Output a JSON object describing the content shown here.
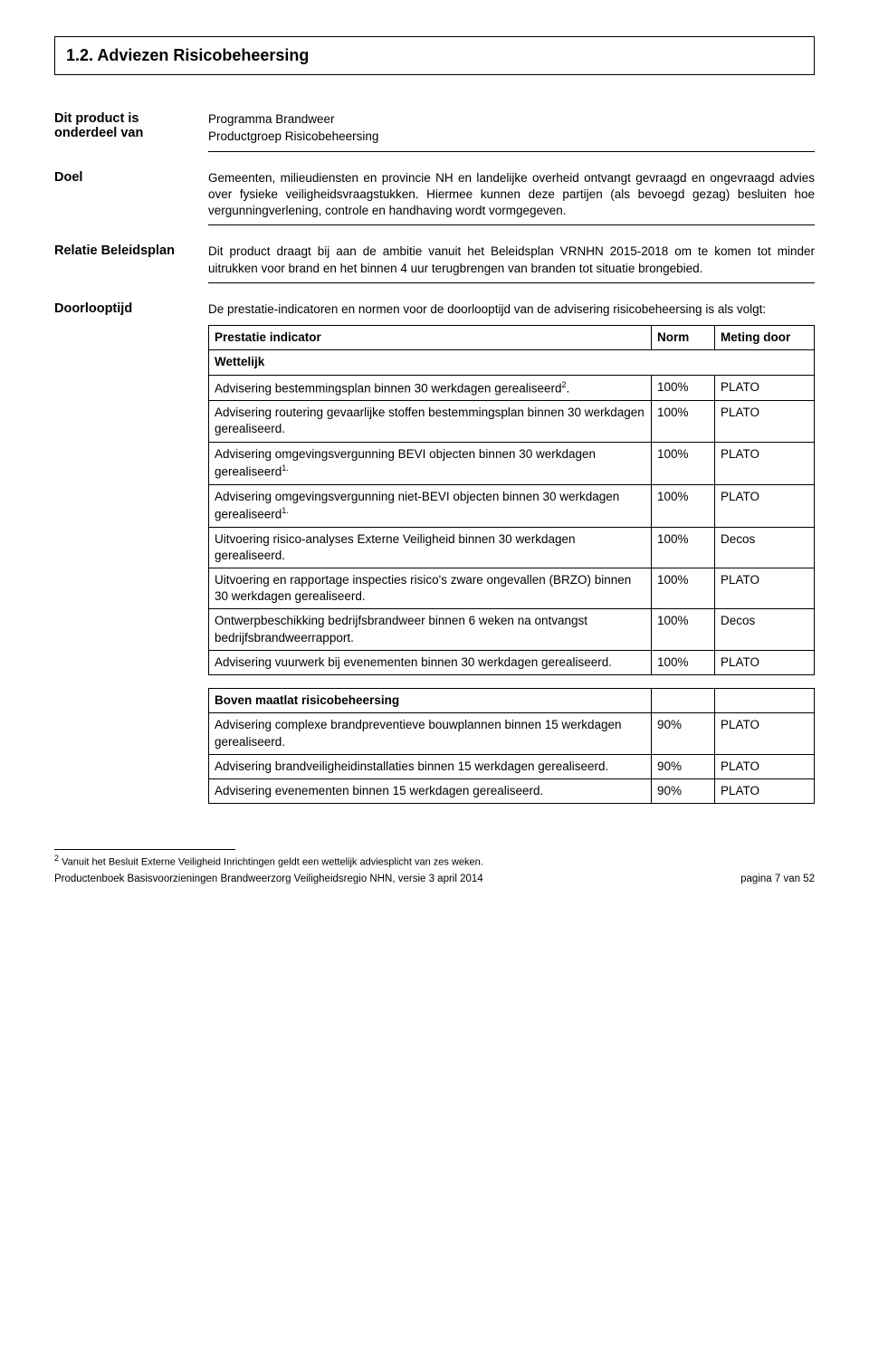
{
  "title": "1.2. Adviezen Risicobeheersing",
  "sections": {
    "onderdeel": {
      "label": "Dit product is onderdeel van",
      "line1": "Programma Brandweer",
      "line2": "Productgroep Risicobeheersing"
    },
    "doel": {
      "label": "Doel",
      "text": "Gemeenten, milieudiensten en provincie NH en landelijke overheid ontvangt gevraagd en ongevraagd advies over fysieke veiligheidsvraagstukken. Hiermee kunnen deze partijen (als bevoegd gezag) besluiten hoe vergunningverlening, controle en handhaving wordt vormgegeven."
    },
    "relatie": {
      "label": "Relatie Beleidsplan",
      "text": "Dit product draagt bij aan de ambitie vanuit het Beleidsplan VRNHN 2015-2018 om te komen tot minder uitrukken voor brand en het binnen 4 uur  terugbrengen van branden tot situatie brongebied."
    },
    "doorlooptijd": {
      "label": "Doorlooptijd",
      "intro": "De prestatie-indicatoren en normen voor de doorlooptijd van de advisering risicobeheersing is als volgt:"
    }
  },
  "table1": {
    "headers": [
      "Prestatie indicator",
      "Norm",
      "Meting door"
    ],
    "subhead": "Wettelijk",
    "rows": [
      {
        "text": "Advisering bestemmingsplan binnen 30 werkdagen gerealiseerd",
        "sup": "2",
        "supAfter": ".",
        "norm": "100%",
        "meting": "PLATO"
      },
      {
        "text": "Advisering routering gevaarlijke stoffen bestemmingsplan binnen 30 werkdagen gerealiseerd.",
        "norm": "100%",
        "meting": "PLATO"
      },
      {
        "text": "Advisering omgevingsvergunning BEVI objecten binnen 30 werkdagen gerealiseerd",
        "sup": "1.",
        "norm": "100%",
        "meting": "PLATO"
      },
      {
        "text": "Advisering omgevingsvergunning niet-BEVI objecten binnen 30 werkdagen gerealiseerd",
        "sup": "1.",
        "norm": "100%",
        "meting": "PLATO"
      },
      {
        "text": "Uitvoering risico-analyses Externe Veiligheid binnen 30 werkdagen gerealiseerd.",
        "norm": "100%",
        "meting": "Decos"
      },
      {
        "text": "Uitvoering en rapportage inspecties risico's zware ongevallen (BRZO) binnen 30 werkdagen gerealiseerd.",
        "norm": "100%",
        "meting": "PLATO"
      },
      {
        "text": "Ontwerpbeschikking bedrijfsbrandweer binnen 6 weken na ontvangst bedrijfsbrandweerrapport.",
        "norm": "100%",
        "meting": "Decos"
      },
      {
        "text": "Advisering vuurwerk bij evenementen binnen 30 werkdagen gerealiseerd.",
        "norm": "100%",
        "meting": "PLATO"
      }
    ]
  },
  "table2": {
    "subhead": "Boven maatlat risicobeheersing",
    "rows": [
      {
        "text": "Advisering complexe brandpreventieve bouwplannen binnen 15 werkdagen gerealiseerd.",
        "norm": "90%",
        "meting": "PLATO"
      },
      {
        "text": "Advisering brandveiligheidinstallaties binnen 15 werkdagen gerealiseerd.",
        "norm": "90%",
        "meting": "PLATO"
      },
      {
        "text": "Advisering evenementen binnen 15 werkdagen gerealiseerd.",
        "norm": "90%",
        "meting": "PLATO"
      }
    ]
  },
  "footnote": {
    "marker": "2",
    "text": " Vanuit het Besluit Externe Veiligheid Inrichtingen geldt een wettelijk adviesplicht van zes weken."
  },
  "footer": {
    "left": "Productenboek Basisvoorzieningen Brandweerzorg Veiligheidsregio NHN, versie 3 april 2014",
    "right": "pagina 7 van 52"
  }
}
